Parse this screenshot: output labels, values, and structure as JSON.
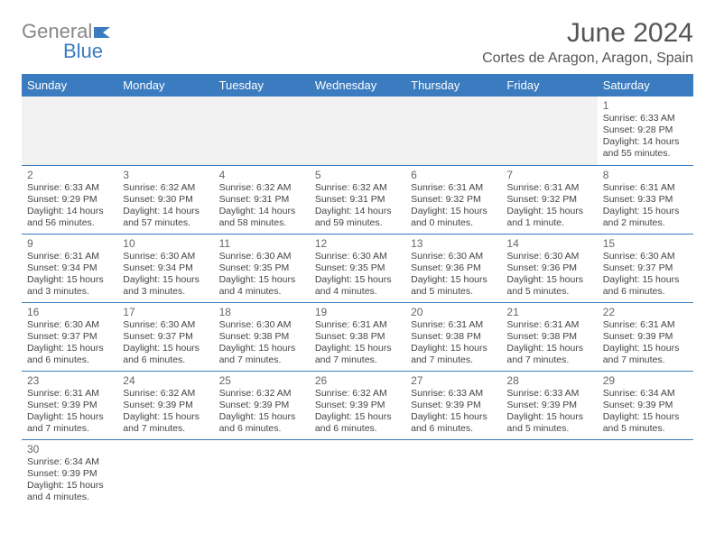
{
  "logo": {
    "text_gray": "General",
    "text_blue": "Blue"
  },
  "title": "June 2024",
  "location": "Cortes de Aragon, Aragon, Spain",
  "colors": {
    "header_bg": "#3b7bbf",
    "header_text": "#ffffff",
    "body_text": "#444444",
    "title_text": "#555555",
    "row_divider": "#3b7bbf",
    "empty_bg": "#f2f2f2"
  },
  "day_headers": [
    "Sunday",
    "Monday",
    "Tuesday",
    "Wednesday",
    "Thursday",
    "Friday",
    "Saturday"
  ],
  "weeks": [
    [
      null,
      null,
      null,
      null,
      null,
      null,
      {
        "n": "1",
        "sunrise": "6:33 AM",
        "sunset": "9:28 PM",
        "daylight": "14 hours and 55 minutes."
      }
    ],
    [
      {
        "n": "2",
        "sunrise": "6:33 AM",
        "sunset": "9:29 PM",
        "daylight": "14 hours and 56 minutes."
      },
      {
        "n": "3",
        "sunrise": "6:32 AM",
        "sunset": "9:30 PM",
        "daylight": "14 hours and 57 minutes."
      },
      {
        "n": "4",
        "sunrise": "6:32 AM",
        "sunset": "9:31 PM",
        "daylight": "14 hours and 58 minutes."
      },
      {
        "n": "5",
        "sunrise": "6:32 AM",
        "sunset": "9:31 PM",
        "daylight": "14 hours and 59 minutes."
      },
      {
        "n": "6",
        "sunrise": "6:31 AM",
        "sunset": "9:32 PM",
        "daylight": "15 hours and 0 minutes."
      },
      {
        "n": "7",
        "sunrise": "6:31 AM",
        "sunset": "9:32 PM",
        "daylight": "15 hours and 1 minute."
      },
      {
        "n": "8",
        "sunrise": "6:31 AM",
        "sunset": "9:33 PM",
        "daylight": "15 hours and 2 minutes."
      }
    ],
    [
      {
        "n": "9",
        "sunrise": "6:31 AM",
        "sunset": "9:34 PM",
        "daylight": "15 hours and 3 minutes."
      },
      {
        "n": "10",
        "sunrise": "6:30 AM",
        "sunset": "9:34 PM",
        "daylight": "15 hours and 3 minutes."
      },
      {
        "n": "11",
        "sunrise": "6:30 AM",
        "sunset": "9:35 PM",
        "daylight": "15 hours and 4 minutes."
      },
      {
        "n": "12",
        "sunrise": "6:30 AM",
        "sunset": "9:35 PM",
        "daylight": "15 hours and 4 minutes."
      },
      {
        "n": "13",
        "sunrise": "6:30 AM",
        "sunset": "9:36 PM",
        "daylight": "15 hours and 5 minutes."
      },
      {
        "n": "14",
        "sunrise": "6:30 AM",
        "sunset": "9:36 PM",
        "daylight": "15 hours and 5 minutes."
      },
      {
        "n": "15",
        "sunrise": "6:30 AM",
        "sunset": "9:37 PM",
        "daylight": "15 hours and 6 minutes."
      }
    ],
    [
      {
        "n": "16",
        "sunrise": "6:30 AM",
        "sunset": "9:37 PM",
        "daylight": "15 hours and 6 minutes."
      },
      {
        "n": "17",
        "sunrise": "6:30 AM",
        "sunset": "9:37 PM",
        "daylight": "15 hours and 6 minutes."
      },
      {
        "n": "18",
        "sunrise": "6:30 AM",
        "sunset": "9:38 PM",
        "daylight": "15 hours and 7 minutes."
      },
      {
        "n": "19",
        "sunrise": "6:31 AM",
        "sunset": "9:38 PM",
        "daylight": "15 hours and 7 minutes."
      },
      {
        "n": "20",
        "sunrise": "6:31 AM",
        "sunset": "9:38 PM",
        "daylight": "15 hours and 7 minutes."
      },
      {
        "n": "21",
        "sunrise": "6:31 AM",
        "sunset": "9:38 PM",
        "daylight": "15 hours and 7 minutes."
      },
      {
        "n": "22",
        "sunrise": "6:31 AM",
        "sunset": "9:39 PM",
        "daylight": "15 hours and 7 minutes."
      }
    ],
    [
      {
        "n": "23",
        "sunrise": "6:31 AM",
        "sunset": "9:39 PM",
        "daylight": "15 hours and 7 minutes."
      },
      {
        "n": "24",
        "sunrise": "6:32 AM",
        "sunset": "9:39 PM",
        "daylight": "15 hours and 7 minutes."
      },
      {
        "n": "25",
        "sunrise": "6:32 AM",
        "sunset": "9:39 PM",
        "daylight": "15 hours and 6 minutes."
      },
      {
        "n": "26",
        "sunrise": "6:32 AM",
        "sunset": "9:39 PM",
        "daylight": "15 hours and 6 minutes."
      },
      {
        "n": "27",
        "sunrise": "6:33 AM",
        "sunset": "9:39 PM",
        "daylight": "15 hours and 6 minutes."
      },
      {
        "n": "28",
        "sunrise": "6:33 AM",
        "sunset": "9:39 PM",
        "daylight": "15 hours and 5 minutes."
      },
      {
        "n": "29",
        "sunrise": "6:34 AM",
        "sunset": "9:39 PM",
        "daylight": "15 hours and 5 minutes."
      }
    ],
    [
      {
        "n": "30",
        "sunrise": "6:34 AM",
        "sunset": "9:39 PM",
        "daylight": "15 hours and 4 minutes."
      },
      null,
      null,
      null,
      null,
      null,
      null
    ]
  ],
  "labels": {
    "sunrise": "Sunrise:",
    "sunset": "Sunset:",
    "daylight": "Daylight:"
  }
}
